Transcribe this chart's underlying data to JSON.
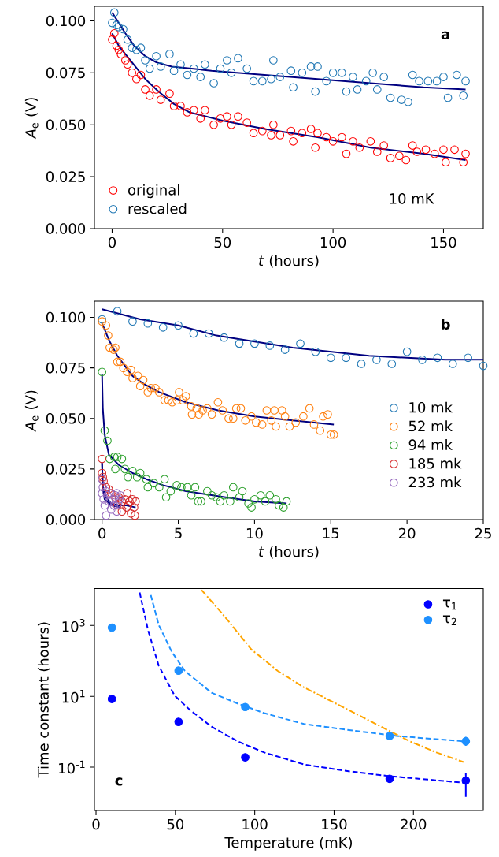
{
  "chart_data": [
    {
      "type": "scatter",
      "xlabel": "*t* (hours)",
      "ylabel": "*A*$_{e}$ (V)",
      "marker": "circle",
      "legend": "bottom left",
      "xlim": [
        -8,
        168
      ],
      "ylim": [
        0,
        0.107
      ],
      "xticks": [
        0,
        50,
        100,
        150
      ],
      "yticks": [
        {
          "value": 0,
          "label": "0.000"
        },
        {
          "value": 0.025,
          "label": "0.025"
        },
        {
          "value": 0.05,
          "label": "0.050"
        },
        {
          "value": 0.075,
          "label": "0.075"
        },
        {
          "value": 0.1,
          "label": "0.100"
        }
      ],
      "annotations": [
        "a",
        "10 mK"
      ],
      "series": [
        {
          "name": "original",
          "color": "#ff0000",
          "x": [
            0,
            1,
            2,
            3,
            4,
            6,
            7,
            9,
            11,
            13,
            15,
            17,
            20,
            22,
            26,
            28,
            31,
            34,
            37,
            40,
            42,
            46,
            49,
            52,
            54,
            57,
            61,
            64,
            68,
            72,
            73,
            76,
            81,
            82,
            86,
            90,
            92,
            93,
            97,
            100,
            104,
            106,
            109,
            112,
            117,
            120,
            123,
            126,
            130,
            133,
            136,
            138,
            142,
            146,
            150,
            151,
            155,
            159,
            160
          ],
          "values": [
            0.091,
            0.094,
            0.088,
            0.086,
            0.084,
            0.081,
            0.079,
            0.075,
            0.072,
            0.074,
            0.067,
            0.064,
            0.067,
            0.062,
            0.065,
            0.059,
            0.059,
            0.056,
            0.057,
            0.053,
            0.057,
            0.05,
            0.053,
            0.054,
            0.05,
            0.054,
            0.051,
            0.046,
            0.047,
            0.045,
            0.05,
            0.045,
            0.047,
            0.042,
            0.046,
            0.048,
            0.039,
            0.046,
            0.044,
            0.042,
            0.044,
            0.036,
            0.042,
            0.039,
            0.042,
            0.037,
            0.04,
            0.034,
            0.035,
            0.033,
            0.04,
            0.037,
            0.038,
            0.036,
            0.038,
            0.032,
            0.038,
            0.032,
            0.036
          ]
        },
        {
          "name": "rescaled",
          "color": "#1f77b4",
          "x": [
            0,
            1,
            2,
            3,
            5,
            7,
            9,
            11,
            13,
            15,
            17,
            20,
            22,
            26,
            28,
            31,
            34,
            37,
            40,
            42,
            46,
            49,
            52,
            54,
            57,
            61,
            64,
            68,
            72,
            73,
            76,
            81,
            82,
            86,
            90,
            92,
            93,
            97,
            100,
            104,
            106,
            109,
            111,
            115,
            118,
            120,
            123,
            126,
            131,
            134,
            136,
            139,
            143,
            147,
            150,
            152,
            156,
            159,
            160
          ],
          "values": [
            0.099,
            0.104,
            0.098,
            0.097,
            0.096,
            0.091,
            0.087,
            0.086,
            0.087,
            0.081,
            0.077,
            0.083,
            0.078,
            0.084,
            0.076,
            0.079,
            0.074,
            0.077,
            0.073,
            0.079,
            0.07,
            0.077,
            0.081,
            0.075,
            0.082,
            0.077,
            0.071,
            0.071,
            0.072,
            0.081,
            0.073,
            0.076,
            0.068,
            0.075,
            0.078,
            0.066,
            0.078,
            0.071,
            0.075,
            0.075,
            0.066,
            0.073,
            0.067,
            0.071,
            0.075,
            0.067,
            0.073,
            0.063,
            0.062,
            0.061,
            0.074,
            0.071,
            0.071,
            0.071,
            0.073,
            0.063,
            0.074,
            0.064,
            0.071
          ]
        },
        {
          "type": "line",
          "marker": "none",
          "color": "#000080",
          "x": [
            0,
            3,
            9,
            15,
            21,
            28,
            35,
            50,
            69,
            93,
            117,
            141,
            160
          ],
          "values": [
            0.094,
            0.088,
            0.08,
            0.072,
            0.066,
            0.06,
            0.056,
            0.052,
            0.048,
            0.044,
            0.039,
            0.036,
            0.033
          ]
        },
        {
          "type": "line",
          "marker": "none",
          "color": "#000080",
          "x": [
            0,
            3,
            6,
            10,
            15,
            20,
            27,
            45,
            69,
            93,
            117,
            141,
            160
          ],
          "values": [
            0.104,
            0.099,
            0.094,
            0.088,
            0.083,
            0.08,
            0.078,
            0.076,
            0.074,
            0.072,
            0.07,
            0.068,
            0.067
          ]
        }
      ]
    },
    {
      "type": "scatter",
      "xlabel": "*t* (hours)",
      "ylabel": "*A*$_{e}$ (V)",
      "marker": "circle",
      "legend": "right",
      "xlim": [
        -0.5,
        25
      ],
      "ylim": [
        0,
        0.108
      ],
      "xticks": [
        0,
        5,
        10,
        15,
        20,
        25
      ],
      "yticks": [
        {
          "value": 0,
          "label": "0.000"
        },
        {
          "value": 0.025,
          "label": "0.025"
        },
        {
          "value": 0.05,
          "label": "0.050"
        },
        {
          "value": 0.075,
          "label": "0.075"
        },
        {
          "value": 0.1,
          "label": "0.100"
        }
      ],
      "annotations": [
        "b"
      ],
      "series": [
        {
          "name": "10 mk",
          "color": "#1f77b4",
          "x": [
            0,
            1,
            2,
            3,
            4,
            5,
            6,
            7,
            8,
            9,
            10,
            11,
            12,
            13,
            14,
            15,
            16,
            17,
            18,
            19,
            20,
            21,
            22,
            23,
            24,
            25
          ],
          "values": [
            0.099,
            0.103,
            0.098,
            0.097,
            0.095,
            0.096,
            0.092,
            0.092,
            0.09,
            0.087,
            0.087,
            0.086,
            0.084,
            0.087,
            0.083,
            0.08,
            0.08,
            0.077,
            0.079,
            0.077,
            0.083,
            0.079,
            0.08,
            0.077,
            0.08,
            0.076
          ]
        },
        {
          "name": "52 mk",
          "color": "#ff7f0e",
          "x": [
            0,
            0.26,
            0.4,
            0.5,
            0.75,
            0.87,
            1,
            1.2,
            1.4,
            1.65,
            1.9,
            2,
            2.35,
            2.5,
            2.7,
            3,
            3.2,
            3.5,
            3.75,
            4.1,
            4.35,
            4.6,
            4.9,
            5.05,
            5.3,
            5.5,
            5.85,
            5.9,
            6.2,
            6.35,
            6.6,
            6.9,
            7.2,
            7.6,
            7.9,
            8.3,
            8.6,
            8.8,
            9.1,
            9.4,
            9.8,
            10.1,
            10.5,
            10.8,
            11.1,
            11.3,
            11.4,
            11.8,
            12,
            12.3,
            12.7,
            13.2,
            13.6,
            13.9,
            14.3,
            14.5,
            14.8,
            15,
            15.2
          ],
          "values": [
            0.098,
            0.096,
            0.091,
            0.085,
            0.084,
            0.085,
            0.078,
            0.078,
            0.075,
            0.073,
            0.074,
            0.07,
            0.071,
            0.066,
            0.069,
            0.063,
            0.065,
            0.065,
            0.063,
            0.059,
            0.059,
            0.058,
            0.059,
            0.063,
            0.059,
            0.061,
            0.056,
            0.052,
            0.055,
            0.052,
            0.054,
            0.055,
            0.052,
            0.058,
            0.054,
            0.05,
            0.05,
            0.055,
            0.055,
            0.049,
            0.051,
            0.048,
            0.047,
            0.054,
            0.049,
            0.054,
            0.046,
            0.054,
            0.051,
            0.046,
            0.048,
            0.051,
            0.055,
            0.047,
            0.044,
            0.051,
            0.052,
            0.042,
            0.042
          ]
        },
        {
          "name": "94 mk",
          "color": "#2ca02c",
          "x": [
            0,
            0.17,
            0.35,
            0.5,
            0.8,
            0.87,
            1,
            1.3,
            1.5,
            1.7,
            2,
            2.3,
            2.5,
            2.9,
            3,
            3.4,
            3.75,
            4.1,
            4.2,
            4.5,
            4.9,
            5.2,
            5.6,
            5.85,
            6.1,
            6.3,
            6.5,
            6.9,
            7.2,
            7.5,
            7.75,
            8,
            8.4,
            8.6,
            9,
            9.2,
            9.6,
            9.8,
            10,
            10.4,
            10.7,
            11,
            11.4,
            11.6,
            11.9,
            12.1
          ],
          "values": [
            0.073,
            0.044,
            0.039,
            0.03,
            0.031,
            0.025,
            0.031,
            0.03,
            0.025,
            0.021,
            0.024,
            0.021,
            0.023,
            0.02,
            0.016,
            0.018,
            0.016,
            0.02,
            0.011,
            0.014,
            0.017,
            0.016,
            0.016,
            0.012,
            0.016,
            0.009,
            0.009,
            0.014,
            0.012,
            0.011,
            0.009,
            0.012,
            0.009,
            0.016,
            0.011,
            0.014,
            0.008,
            0.006,
            0.01,
            0.012,
            0.009,
            0.012,
            0.01,
            0.007,
            0.006,
            0.009
          ]
        },
        {
          "name": "185 mk",
          "color": "#d62728",
          "x": [
            0,
            0,
            0.05,
            0.1,
            0.26,
            0.44,
            0.6,
            0.87,
            1,
            1.1,
            1.3,
            1.3,
            1.5,
            1.6,
            1.65,
            1.7,
            1.8,
            1.9,
            2,
            2.1,
            2.15,
            2.2
          ],
          "values": [
            0.03,
            0.023,
            0.021,
            0.019,
            0.016,
            0.015,
            0.013,
            0.011,
            0.007,
            0.011,
            0.009,
            0.004,
            0.01,
            0.006,
            0.013,
            0.007,
            0.009,
            0.003,
            0.01,
            0.006,
            0.002,
            0.009
          ]
        },
        {
          "name": "233 mk",
          "color": "#9467bd",
          "x": [
            0,
            0,
            0.05,
            0.1,
            0.17,
            0.26,
            0.26,
            0.35,
            0.44,
            0.5,
            0.6,
            0.7,
            0.78,
            0.87,
            0.96,
            0.96,
            1.05,
            1.13,
            1.2
          ],
          "values": [
            0.02,
            0.013,
            0.016,
            0.01,
            0.007,
            0.002,
            0.014,
            0.012,
            0.009,
            0.013,
            0.005,
            0.01,
            0.007,
            0.012,
            0.004,
            0.013,
            0.008,
            0.01,
            0.012
          ]
        },
        {
          "type": "line",
          "marker": "none",
          "color": "#000080",
          "x": [
            0,
            2.5,
            5,
            7.5,
            10,
            12.5,
            15,
            17.5,
            20,
            22.5,
            25
          ],
          "values": [
            0.104,
            0.099,
            0.096,
            0.091,
            0.088,
            0.085,
            0.083,
            0.081,
            0.08,
            0.079,
            0.079
          ]
        },
        {
          "type": "line",
          "marker": "none",
          "color": "#000080",
          "x": [
            0,
            0.5,
            1,
            1.5,
            2,
            2.75,
            3.75,
            5.5,
            7.6,
            10,
            12.5,
            15.2
          ],
          "values": [
            0.097,
            0.088,
            0.081,
            0.076,
            0.071,
            0.067,
            0.063,
            0.058,
            0.054,
            0.051,
            0.049,
            0.047
          ]
        },
        {
          "type": "line",
          "marker": "none",
          "color": "#000080",
          "x": [
            0,
            0.05,
            0.17,
            0.45,
            1.1,
            2,
            2.9,
            4,
            5.5,
            8.1,
            10,
            12.1
          ],
          "values": [
            0.072,
            0.055,
            0.042,
            0.032,
            0.027,
            0.023,
            0.02,
            0.017,
            0.014,
            0.011,
            0.009,
            0.008
          ]
        },
        {
          "type": "line",
          "marker": "none",
          "color": "#000080",
          "x": [
            0,
            0.05,
            0.26,
            0.6,
            1.1,
            1.6,
            2.2
          ],
          "values": [
            0.028,
            0.016,
            0.011,
            0.008,
            0.007,
            0.007,
            0.006
          ]
        },
        {
          "type": "line",
          "marker": "none",
          "color": "#000080",
          "x": [
            0,
            0.05,
            0.17,
            0.6,
            1.2
          ],
          "values": [
            0.028,
            0.015,
            0.01,
            0.007,
            0.006
          ]
        }
      ]
    },
    {
      "type": "scatter",
      "xlabel": "Temperature (mK)",
      "ylabel": "Time constant (hours)",
      "marker": "circle",
      "legend": "top right",
      "log": "y",
      "xlim": [
        -1,
        244
      ],
      "ylim": [
        0.006,
        11000
      ],
      "xticks": [
        0,
        50,
        100,
        150,
        200
      ],
      "yticks": [
        {
          "value": 0.1,
          "label": "10$^{-1}$"
        },
        {
          "value": 10,
          "label": "10$^{1}$"
        },
        {
          "value": 1000,
          "label": "10$^{3}$"
        }
      ],
      "annotations": [
        "c"
      ],
      "series": [
        {
          "name": "τ$_{1}$",
          "color": "#0000ff",
          "x": [
            10,
            52,
            94,
            185,
            233
          ],
          "values": [
            8.4,
            1.9,
            0.19,
            0.047,
            0.042
          ],
          "errors": [
            null,
            null,
            null,
            [
              0.036,
              0.056
            ],
            [
              0.0145,
              0.067
            ]
          ]
        },
        {
          "name": "τ$_{2}$",
          "color": "#1e90ff",
          "x": [
            10,
            52,
            94,
            185,
            233
          ],
          "values": [
            870,
            53,
            5.0,
            0.76,
            0.54
          ],
          "errors": [
            null,
            null,
            null,
            null,
            [
              0.4,
              0.72
            ]
          ]
        },
        {
          "type": "line",
          "marker": "none",
          "line_style": "dashed",
          "color": "#0000ff",
          "x": [
            27.5,
            32.8,
            39.5,
            49.5,
            59.5,
            72.8,
            89.5,
            106,
            131,
            156,
            184.5,
            233
          ],
          "values": [
            8500,
            730,
            73,
            10.5,
            4.0,
            1.39,
            0.53,
            0.26,
            0.12,
            0.08,
            0.056,
            0.036
          ]
        },
        {
          "type": "line",
          "marker": "none",
          "line_style": "dashed",
          "color": "#1e90ff",
          "x": [
            34.5,
            39.5,
            47.8,
            56,
            72.8,
            89.5,
            106,
            131,
            156,
            189.5,
            233
          ],
          "values": [
            7200,
            1040,
            178,
            52,
            12.6,
            6.2,
            3.35,
            1.66,
            1.17,
            0.76,
            0.53
          ]
        },
        {
          "type": "line",
          "marker": "none",
          "line_style": "dashdot",
          "color": "#ffa500",
          "x": [
            66.5,
            81.2,
            97.8,
            114.5,
            131,
            148,
            164.5,
            181,
            198,
            214.5,
            231.5
          ],
          "values": [
            10000,
            1760,
            212,
            52,
            17.9,
            7.4,
            3.1,
            1.29,
            0.53,
            0.26,
            0.14
          ]
        }
      ]
    }
  ]
}
